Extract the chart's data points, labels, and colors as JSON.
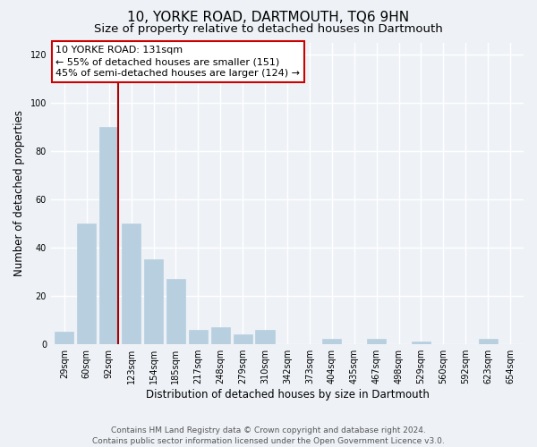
{
  "title": "10, YORKE ROAD, DARTMOUTH, TQ6 9HN",
  "subtitle": "Size of property relative to detached houses in Dartmouth",
  "xlabel": "Distribution of detached houses by size in Dartmouth",
  "ylabel": "Number of detached properties",
  "categories": [
    "29sqm",
    "60sqm",
    "92sqm",
    "123sqm",
    "154sqm",
    "185sqm",
    "217sqm",
    "248sqm",
    "279sqm",
    "310sqm",
    "342sqm",
    "373sqm",
    "404sqm",
    "435sqm",
    "467sqm",
    "498sqm",
    "529sqm",
    "560sqm",
    "592sqm",
    "623sqm",
    "654sqm"
  ],
  "values": [
    5,
    50,
    90,
    50,
    35,
    27,
    6,
    7,
    4,
    6,
    0,
    0,
    2,
    0,
    2,
    0,
    1,
    0,
    0,
    2,
    0
  ],
  "bar_color": "#b8cfe0",
  "vline_color": "#aa0000",
  "vline_index": 2,
  "annotation_text": "10 YORKE ROAD: 131sqm\n← 55% of detached houses are smaller (151)\n45% of semi-detached houses are larger (124) →",
  "annotation_box_color": "#ffffff",
  "annotation_box_edge": "#cc0000",
  "ylim": [
    0,
    125
  ],
  "yticks": [
    0,
    20,
    40,
    60,
    80,
    100,
    120
  ],
  "footer1": "Contains HM Land Registry data © Crown copyright and database right 2024.",
  "footer2": "Contains public sector information licensed under the Open Government Licence v3.0.",
  "background_color": "#eef2f7",
  "grid_color": "#ffffff",
  "title_fontsize": 11,
  "subtitle_fontsize": 9.5,
  "axis_label_fontsize": 8.5,
  "tick_fontsize": 7,
  "annotation_fontsize": 8,
  "footer_fontsize": 6.5
}
